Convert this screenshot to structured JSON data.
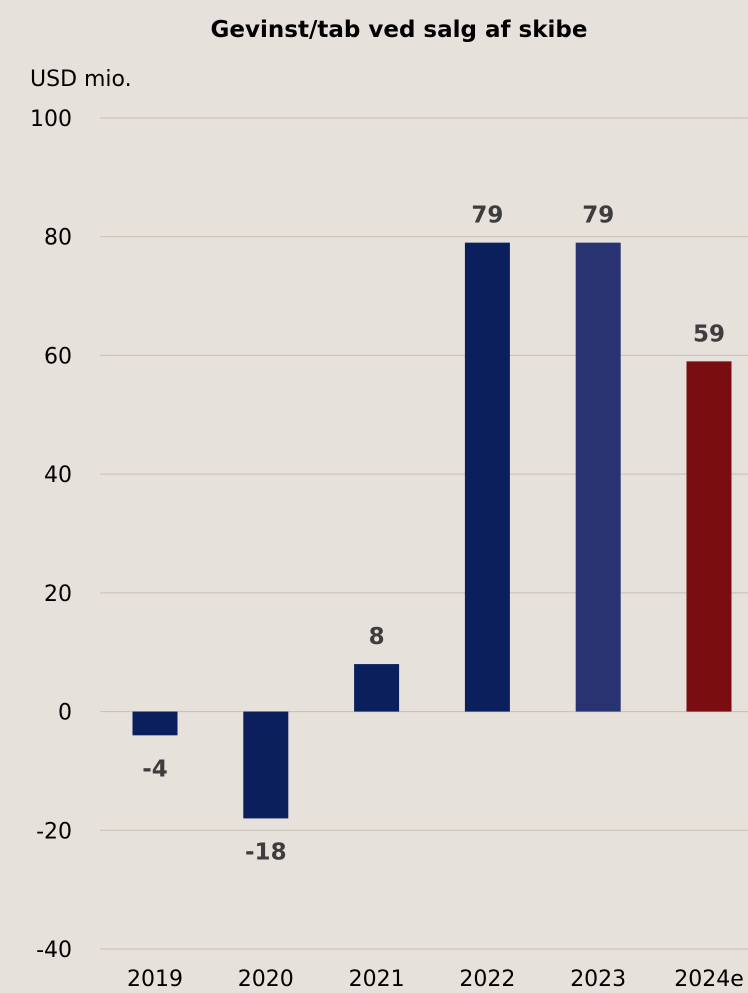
{
  "chart_data": {
    "type": "bar",
    "title": "Gevinst/tab ved salg af skibe",
    "ylabel": "USD mio.",
    "xlabel": "",
    "categories": [
      "2019",
      "2020",
      "2021",
      "2022",
      "2023",
      "2024e"
    ],
    "values": [
      -4,
      -18,
      8,
      79,
      79,
      59
    ],
    "data_labels": [
      "-4",
      "-18",
      "8",
      "79",
      "79",
      "59"
    ],
    "bar_colors": [
      "#0b1f5c",
      "#0b1f5c",
      "#0b1f5c",
      "#0b1f5c",
      "#2a3372",
      "#7a0d0f"
    ],
    "ylim": [
      -40,
      100
    ],
    "yticks": [
      100,
      80,
      60,
      40,
      20,
      0,
      -20,
      -40
    ],
    "ytick_labels": [
      "100",
      "80",
      "60",
      "40",
      "20",
      "0",
      "-20",
      "-40"
    ],
    "grid": true,
    "legend": "none"
  },
  "colors": {
    "background": "#e7e1dc",
    "gridline": "#c9bdb1",
    "data_label": "#3d3d3d"
  }
}
